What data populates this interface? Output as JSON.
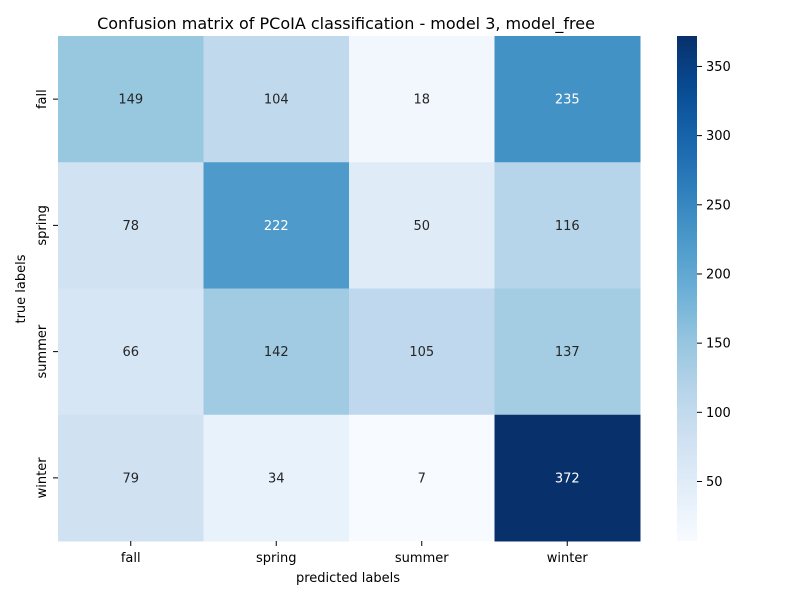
{
  "chart_data": {
    "type": "heatmap",
    "title": "Confusion matrix of PCoIA classification - model 3, model_free",
    "xlabel": "predicted labels",
    "ylabel": "true labels",
    "x_categories": [
      "fall",
      "spring",
      "summer",
      "winter"
    ],
    "y_categories": [
      "fall",
      "spring",
      "summer",
      "winter"
    ],
    "values": [
      [
        149,
        104,
        18,
        235
      ],
      [
        78,
        222,
        50,
        116
      ],
      [
        66,
        142,
        105,
        137
      ],
      [
        79,
        34,
        7,
        372
      ]
    ],
    "colormap": "Blues",
    "colorbar": {
      "vmin": 7,
      "vmax": 372,
      "ticks": [
        50,
        100,
        150,
        200,
        250,
        300,
        350
      ]
    }
  }
}
